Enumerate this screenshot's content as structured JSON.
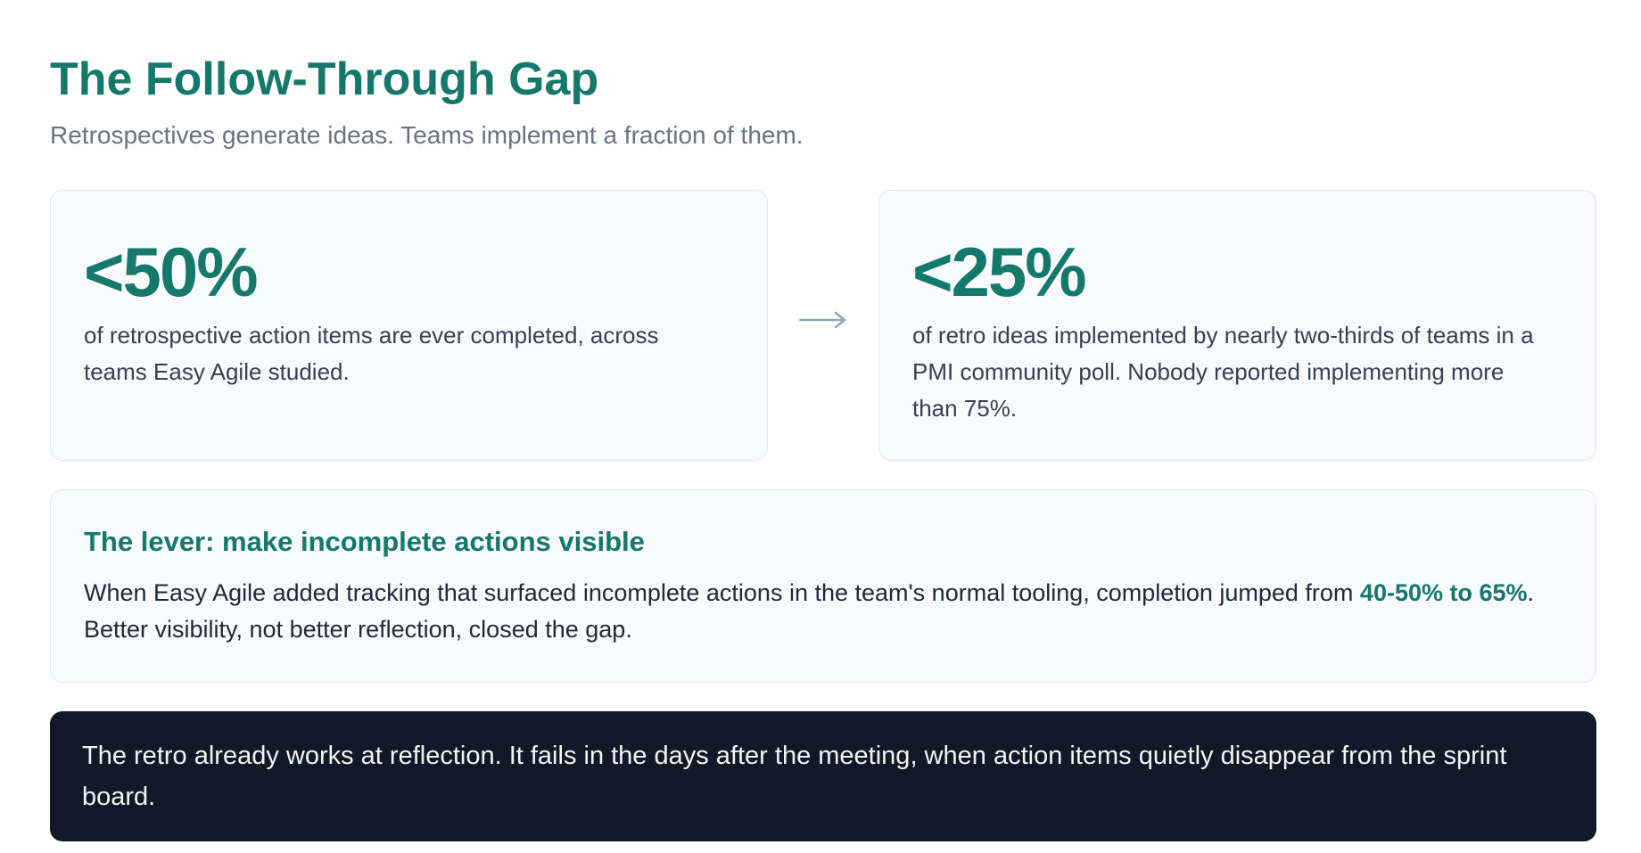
{
  "header": {
    "title": "The Follow-Through Gap",
    "subtitle": "Retrospectives generate ideas. Teams implement a fraction of them."
  },
  "stats": [
    {
      "value": "<50%",
      "description": "of retrospective action items are ever completed, across teams Easy Agile studied."
    },
    {
      "value": "<25%",
      "description": "of retro ideas implemented by nearly two-thirds of teams in a PMI community poll. Nobody reported implementing more than 75%."
    }
  ],
  "arrow_icon": "arrow-right-icon",
  "lever": {
    "heading": "The lever: make incomplete actions visible",
    "text_before": "When Easy Agile added tracking that surfaced incomplete actions in the team's normal tooling, completion jumped from ",
    "highlight": "40-50% to 65%",
    "text_after": ". Better visibility, not better reflection, closed the gap."
  },
  "callout": {
    "text": "The retro already works at reflection. It fails in the days after the meeting, when action items quietly disappear from the sprint board."
  },
  "colors": {
    "accent": "#14786b",
    "muted": "#6b7280",
    "card_bg": "#f8fafc",
    "card_border": "#e2e8f0",
    "callout_bg": "#111827",
    "arrow": "#94a3b8"
  }
}
